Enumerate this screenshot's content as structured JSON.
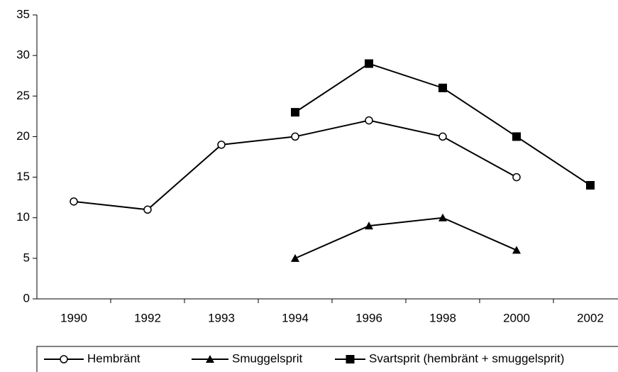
{
  "chart_data": {
    "type": "line",
    "categories": [
      "1990",
      "1992",
      "1993",
      "1994",
      "1996",
      "1998",
      "2000",
      "2002"
    ],
    "series": [
      {
        "name": "Hembränt",
        "color": "#000000",
        "marker": "circle",
        "values": [
          12,
          11,
          19,
          20,
          22,
          20,
          15,
          null
        ]
      },
      {
        "name": "Smuggelsprit",
        "color": "#000000",
        "marker": "triangle",
        "values": [
          null,
          null,
          null,
          5,
          9,
          10,
          6,
          null
        ]
      },
      {
        "name": "Svartsprit (hembränt + smuggelsprit)",
        "color": "#000000",
        "marker": "square",
        "values": [
          null,
          null,
          null,
          23,
          29,
          26,
          20,
          14
        ]
      }
    ],
    "ylim": [
      0,
      35
    ],
    "yticks": [
      0,
      5,
      10,
      15,
      20,
      25,
      30,
      35
    ],
    "grid": false,
    "legend": "bottom"
  }
}
